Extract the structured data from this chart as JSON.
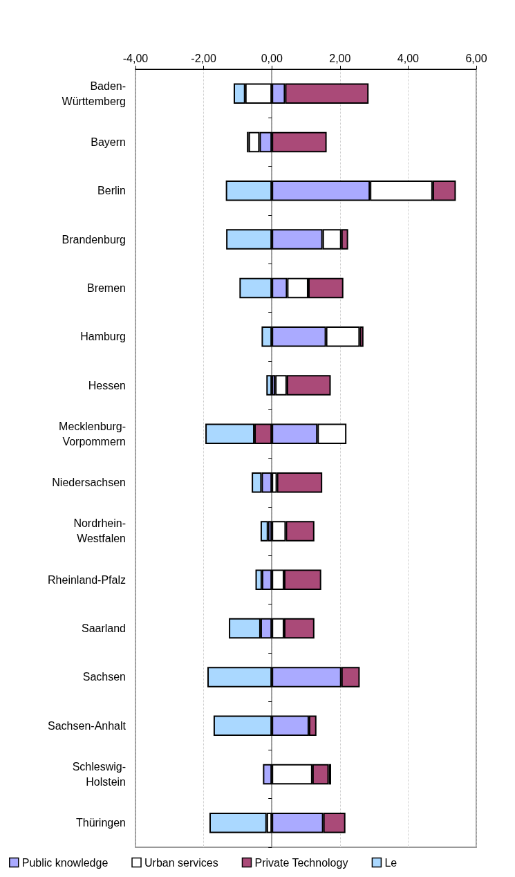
{
  "chart_data": {
    "type": "bar",
    "orientation": "horizontal",
    "stacked": true,
    "categories": [
      "Baden-Württemberg",
      "Bayern",
      "Berlin",
      "Brandenburg",
      "Bremen",
      "Hamburg",
      "Hessen",
      "Mecklenburg-Vorpommern",
      "Niedersachsen",
      "Nordrhein-Westfalen",
      "Rheinland-Pfalz",
      "Saarland",
      "Sachsen",
      "Sachsen-Anhalt",
      "Schleswig-Holstein",
      "Thüringen"
    ],
    "series": [
      {
        "name": "Public knowledge",
        "color": "#aaaaff",
        "values": [
          0.39,
          -0.36,
          2.88,
          1.49,
          0.45,
          1.59,
          0.1,
          1.34,
          -0.3,
          -0.11,
          -0.29,
          -0.33,
          2.04,
          1.09,
          -0.26,
          1.51
        ]
      },
      {
        "name": "Urban services",
        "color": "#ffffff",
        "values": [
          -0.78,
          -0.32,
          1.84,
          0.55,
          0.62,
          0.99,
          0.34,
          0.85,
          0.15,
          0.41,
          0.36,
          0.36,
          null,
          null,
          1.19,
          -0.15
        ]
      },
      {
        "name": "Private Technology",
        "color": "#aa4a78",
        "values": [
          2.45,
          1.61,
          0.68,
          0.2,
          1.03,
          0.11,
          1.29,
          -0.51,
          1.33,
          0.84,
          1.09,
          0.89,
          0.54,
          0.22,
          0.48,
          0.65
        ]
      },
      {
        "name": "Le",
        "color": "#aad8ff",
        "values": [
          -0.34,
          -0.05,
          -1.35,
          -1.34,
          -0.95,
          -0.3,
          -0.16,
          -1.44,
          -0.29,
          -0.22,
          -0.19,
          -0.93,
          -1.89,
          -1.71,
          0.07,
          -1.68
        ]
      }
    ],
    "xlim": [
      -4,
      6
    ],
    "xticks": [
      {
        "value": -4,
        "label": "-4,00"
      },
      {
        "value": -2,
        "label": "-2,00"
      },
      {
        "value": 0,
        "label": "0,00"
      },
      {
        "value": 2,
        "label": "2,00"
      },
      {
        "value": 4,
        "label": "4,00"
      },
      {
        "value": 6,
        "label": "6,00"
      }
    ],
    "grid": "x",
    "legend": "bottom"
  }
}
